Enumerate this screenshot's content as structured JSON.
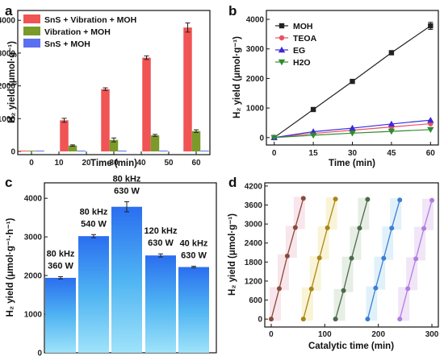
{
  "colors": {
    "red": "#f05454",
    "green": "#7a9a2a",
    "blue": "#5b70f0",
    "black": "#222222",
    "pink": "#ea4f6a",
    "purple": "#3a2ad8",
    "dgreen": "#2e8b2e",
    "cycle": [
      "#8a4a3a",
      "#a8861a",
      "#4a6a4a",
      "#3d7fd0",
      "#b07ee0"
    ]
  },
  "chart_data": [
    {
      "panel": "a",
      "type": "bar",
      "xlabel": "Time (min)",
      "ylabel": "H₂ yield (μmol·g⁻¹)",
      "x_ticks": [
        "0",
        "10",
        "20",
        "30",
        "40",
        "50",
        "60"
      ],
      "categories": [
        "0",
        "15",
        "30",
        "45",
        "60"
      ],
      "ylim": [
        0,
        4300
      ],
      "y_ticks": [
        "0",
        "1000",
        "2000",
        "3000",
        "4000"
      ],
      "legend_position": "top-left",
      "series": [
        {
          "name": "SnS + Vibration + MOH",
          "values": [
            0,
            950,
            1900,
            2860,
            3780
          ],
          "errors": [
            0,
            60,
            40,
            55,
            140
          ]
        },
        {
          "name": "Vibration + MOH",
          "values": [
            0,
            180,
            350,
            490,
            620
          ],
          "errors": [
            0,
            20,
            60,
            30,
            40
          ]
        },
        {
          "name": "SnS + MOH",
          "values": [
            0,
            0,
            0,
            0,
            0
          ],
          "errors": [
            0,
            0,
            0,
            0,
            0
          ]
        }
      ]
    },
    {
      "panel": "b",
      "type": "line",
      "xlabel": "Time (min)",
      "ylabel": "H₂ yield (μmol·g⁻¹)",
      "x": [
        0,
        15,
        30,
        45,
        60
      ],
      "x_ticks": [
        "0",
        "15",
        "30",
        "45",
        "60"
      ],
      "xlim": [
        -3,
        63
      ],
      "ylim": [
        -250,
        4300
      ],
      "y_ticks": [
        "0",
        "1000",
        "2000",
        "3000",
        "4000"
      ],
      "legend_position": "top-left",
      "series": [
        {
          "name": "MOH",
          "marker": "square",
          "values": [
            0,
            950,
            1900,
            2870,
            3780
          ],
          "errors": [
            0,
            40,
            40,
            70,
            120
          ]
        },
        {
          "name": "TEOA",
          "marker": "circle",
          "values": [
            0,
            140,
            250,
            360,
            470
          ]
        },
        {
          "name": "EG",
          "marker": "triangle-up",
          "values": [
            0,
            200,
            320,
            460,
            590
          ]
        },
        {
          "name": "H2O",
          "marker": "triangle-down",
          "values": [
            0,
            80,
            150,
            210,
            270
          ]
        }
      ]
    },
    {
      "panel": "c",
      "type": "bar",
      "ylabel": "H₂ yield (μmol·g⁻¹·h⁻¹)",
      "ylim": [
        0,
        4400
      ],
      "y_ticks": [
        "0",
        "1000",
        "2000",
        "3000",
        "4000"
      ],
      "bars": [
        {
          "line1": "80 kHz",
          "line2": "360 W",
          "value": 1940,
          "error": 30
        },
        {
          "line1": "80 kHz",
          "line2": "540 W",
          "value": 3020,
          "error": 40
        },
        {
          "line1": "80 kHz",
          "line2": "630 W",
          "value": 3780,
          "error": 130
        },
        {
          "line1": "120 kHz",
          "line2": "630 W",
          "value": 2520,
          "error": 40
        },
        {
          "line1": "40 kHz",
          "line2": "630 W",
          "value": 2220,
          "error": 20
        }
      ]
    },
    {
      "panel": "d",
      "type": "line",
      "xlabel": "Catalytic time (min)",
      "ylabel": "H₂ yield (μmol·g⁻¹)",
      "xlim": [
        -12,
        312
      ],
      "ylim": [
        -250,
        4300
      ],
      "x_ticks": [
        "0",
        "100",
        "200",
        "300"
      ],
      "y_ticks": [
        "0",
        "600",
        "1200",
        "1800",
        "2400",
        "3000",
        "3600",
        "4200"
      ],
      "cycles": [
        {
          "x": [
            0,
            15,
            30,
            45,
            60
          ],
          "values": [
            0,
            960,
            1990,
            2890,
            3810
          ]
        },
        {
          "x": [
            60,
            75,
            90,
            105,
            120
          ],
          "values": [
            0,
            950,
            1930,
            2880,
            3790
          ]
        },
        {
          "x": [
            120,
            135,
            150,
            165,
            180
          ],
          "values": [
            0,
            900,
            1920,
            2870,
            3780
          ]
        },
        {
          "x": [
            180,
            195,
            210,
            225,
            240
          ],
          "values": [
            0,
            980,
            1920,
            2870,
            3760
          ]
        },
        {
          "x": [
            240,
            255,
            270,
            285,
            300
          ],
          "values": [
            0,
            960,
            1900,
            2860,
            3750
          ]
        }
      ]
    }
  ],
  "panels": {
    "a": {
      "label": "a"
    },
    "b": {
      "label": "b"
    },
    "c": {
      "label": "c"
    },
    "d": {
      "label": "d"
    }
  }
}
